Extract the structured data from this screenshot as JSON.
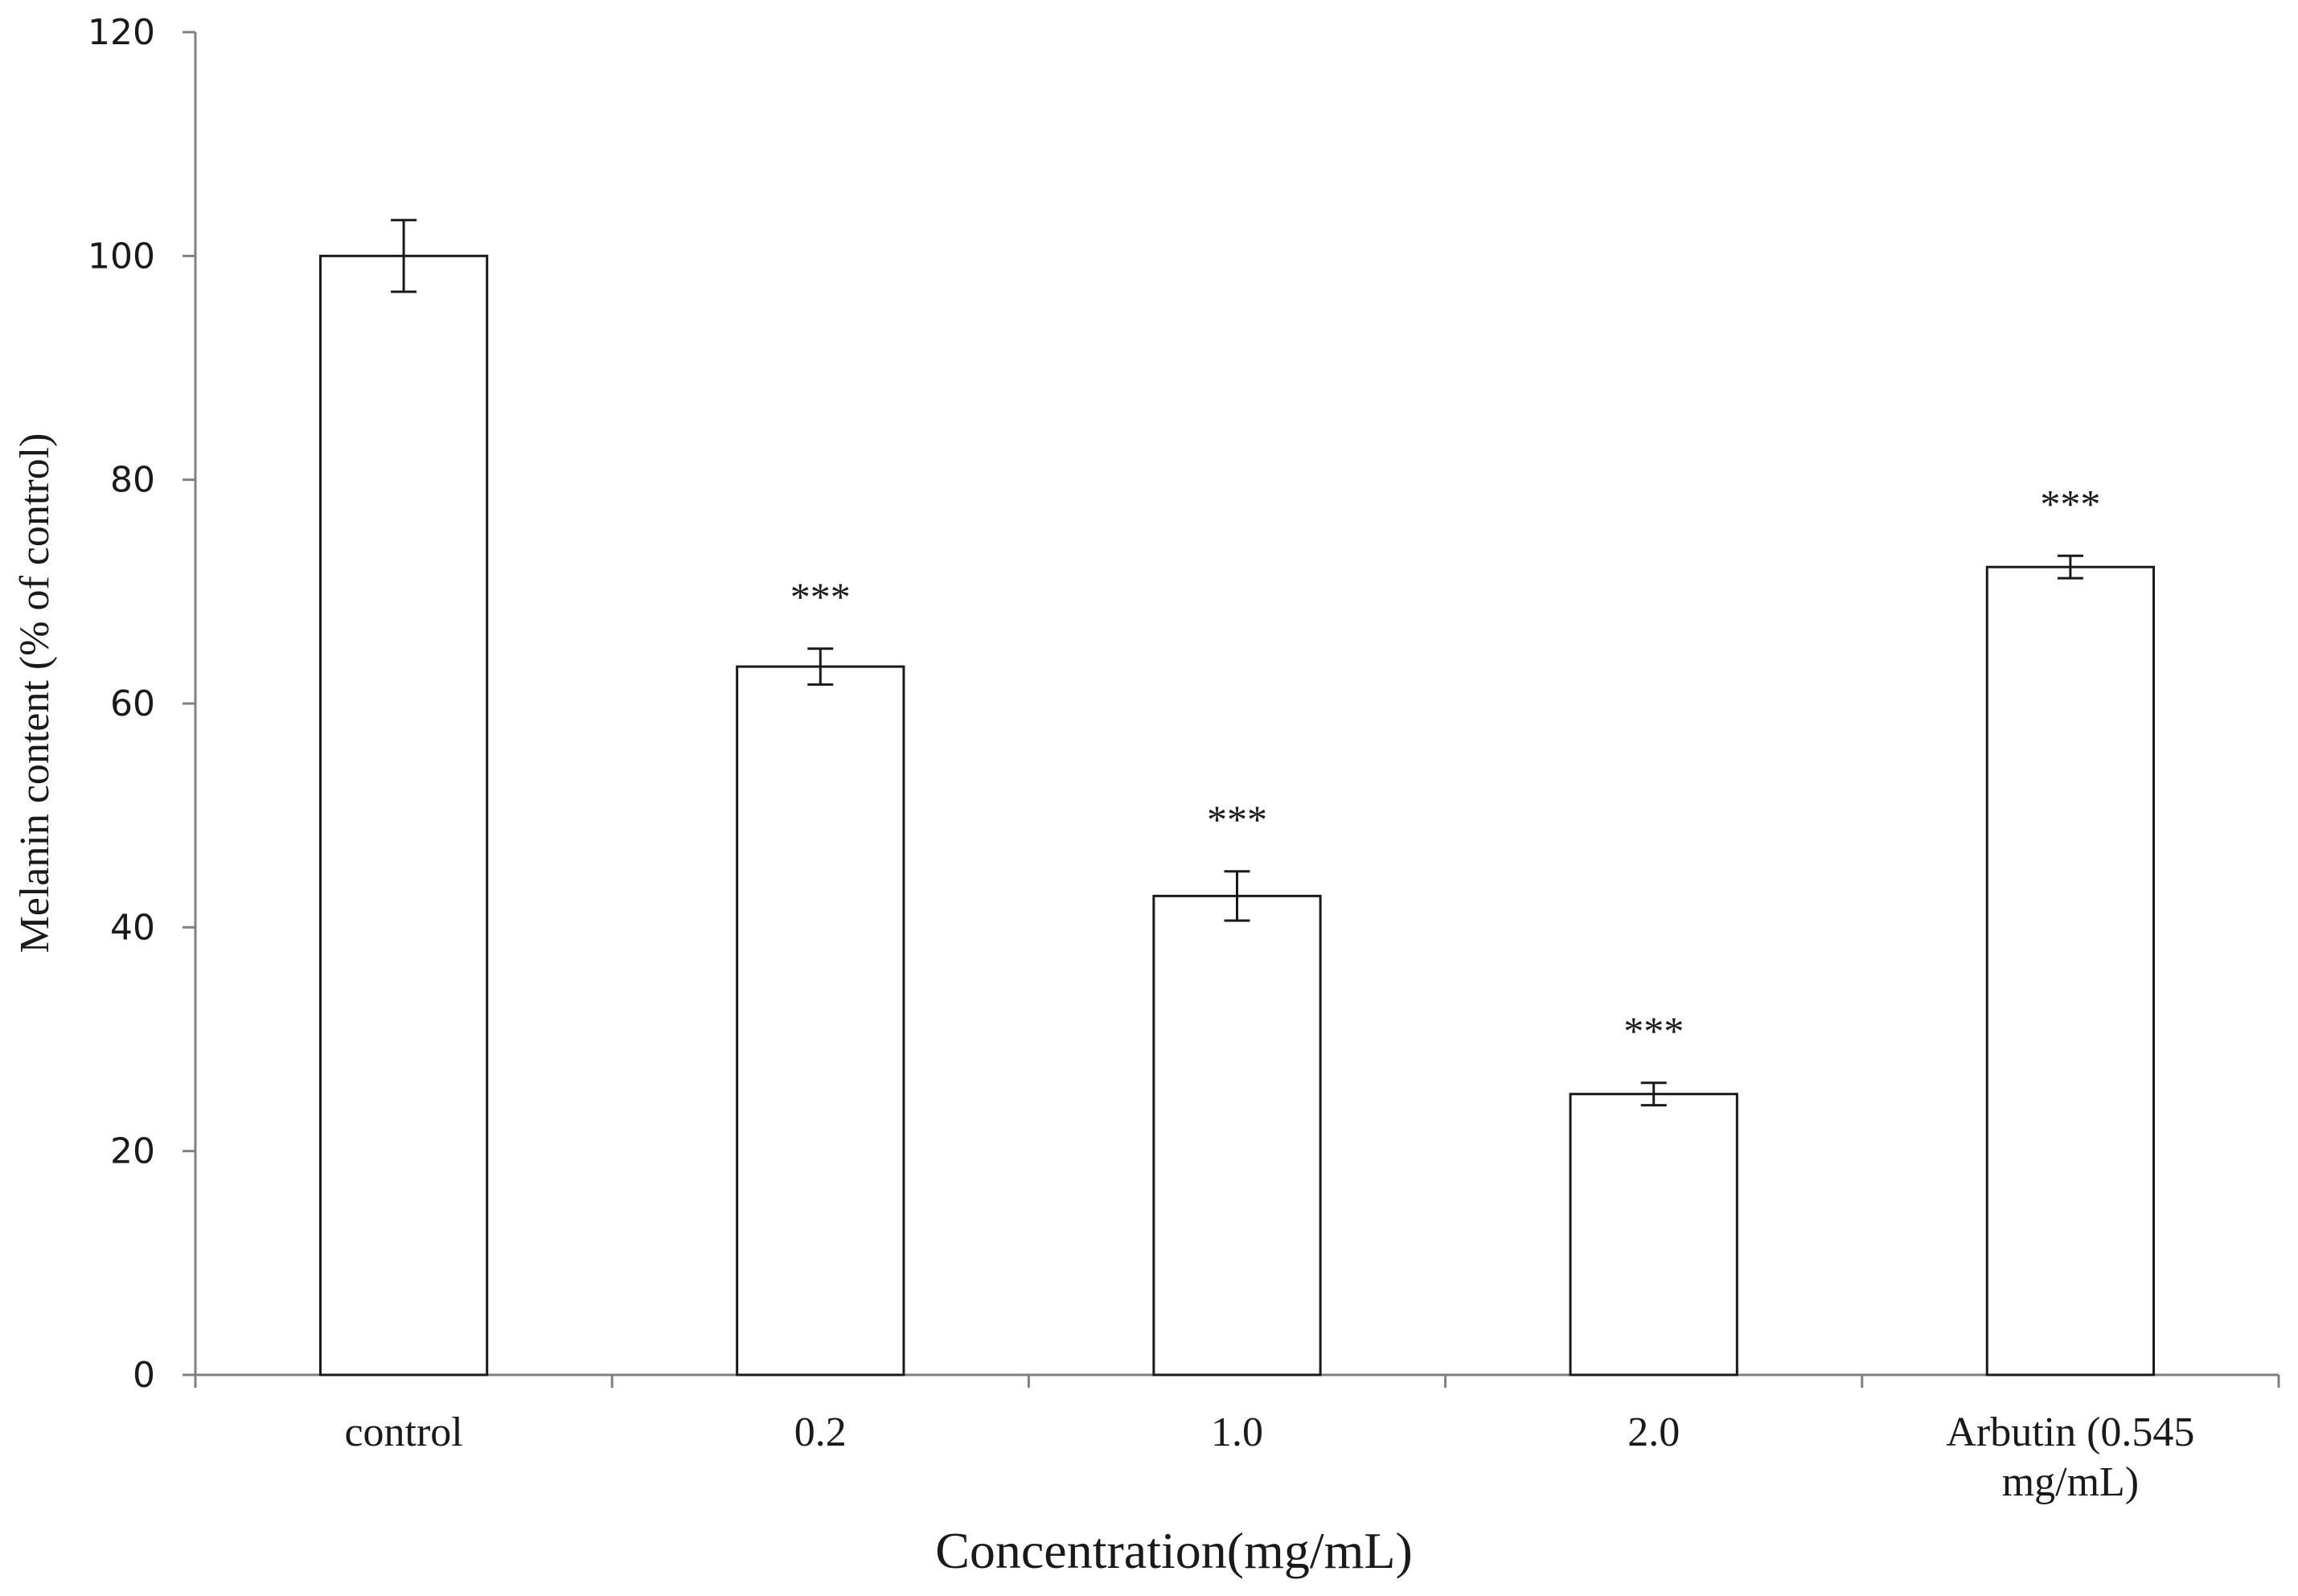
{
  "chart_data": {
    "type": "bar",
    "categories": [
      [
        "control"
      ],
      [
        "0.2"
      ],
      [
        "1.0"
      ],
      [
        "2.0"
      ],
      [
        "Arbutin  (0.545",
        "mg/mL)"
      ]
    ],
    "values": [
      100,
      63.3,
      42.8,
      25.1,
      72.2
    ],
    "error": [
      3.2,
      1.6,
      2.2,
      1.0,
      1.0
    ],
    "annotations": [
      "",
      "***",
      "***",
      "***",
      "***"
    ],
    "xlabel": "Concentration(mg/mL)",
    "ylabel": "Melanin content  (% of control)",
    "ylim": [
      0,
      120
    ],
    "yticks": [
      0,
      20,
      40,
      60,
      80,
      100,
      120
    ],
    "grid": false,
    "colors": {
      "bar_fill": "#ffffff",
      "bar_stroke": "#1a1a1a",
      "axis": "#808080"
    }
  }
}
